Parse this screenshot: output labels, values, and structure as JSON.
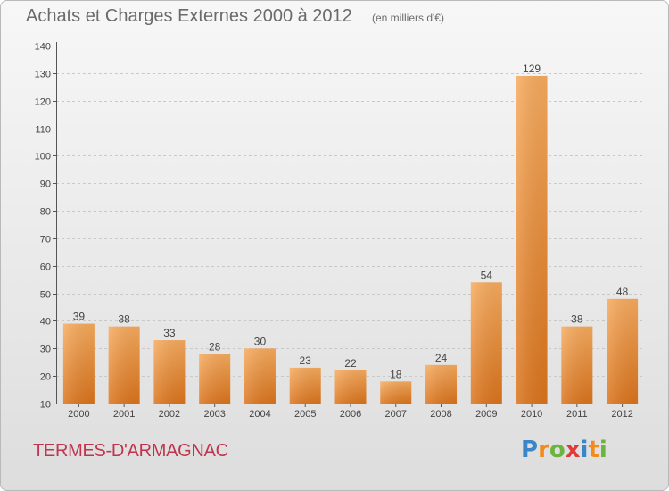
{
  "title": "Achats et Charges Externes 2000 à 2012",
  "subtitle": "(en milliers d'€)",
  "commune": "TERMES-D'ARMAGNAC",
  "logo": {
    "letters": [
      "P",
      "r",
      "o",
      "x",
      "i",
      "t",
      "i"
    ],
    "colors": [
      "#3a86c8",
      "#f28b1c",
      "#6cb33f",
      "#e23a3a",
      "#3a86c8",
      "#f28b1c",
      "#6cb33f"
    ]
  },
  "colors": {
    "bar_light": "#f5a65a",
    "bar_dark": "#e07a22",
    "title": "#6a6a6a",
    "commune": "#c0344d"
  },
  "chart_data": {
    "type": "bar",
    "categories": [
      "2000",
      "2001",
      "2002",
      "2003",
      "2004",
      "2005",
      "2006",
      "2007",
      "2008",
      "2009",
      "2010",
      "2011",
      "2012"
    ],
    "values": [
      39,
      38,
      33,
      28,
      30,
      23,
      22,
      18,
      24,
      54,
      129,
      38,
      48
    ],
    "data_labels": [
      "39",
      "38",
      "33",
      "28",
      "30",
      "23",
      "22",
      "18",
      "24",
      "54",
      "129",
      "38",
      "48"
    ],
    "title": "Achats et Charges Externes 2000 à 2012",
    "xlabel": "",
    "ylabel": "",
    "ylim": [
      10,
      140
    ],
    "yticks": [
      10,
      20,
      30,
      40,
      50,
      60,
      70,
      80,
      90,
      100,
      110,
      120,
      130,
      140
    ],
    "grid": true
  }
}
